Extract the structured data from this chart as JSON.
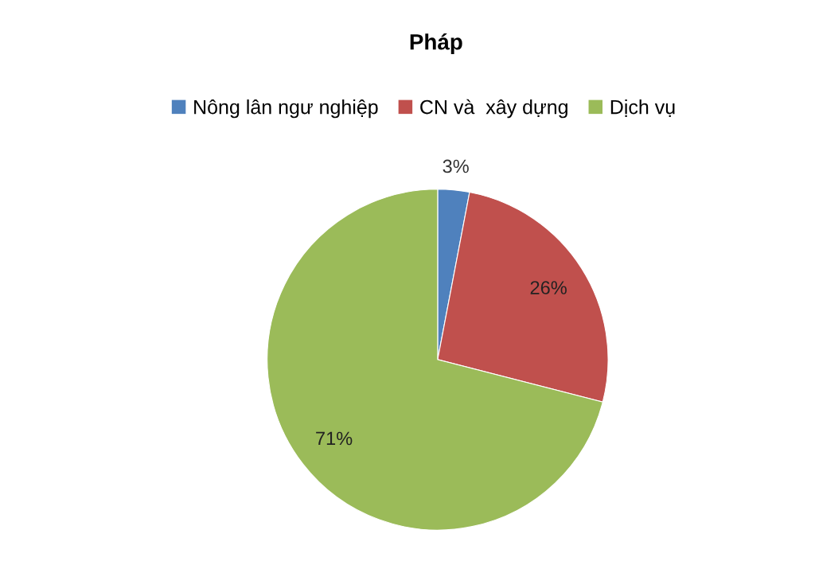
{
  "chart_data": {
    "type": "pie",
    "title": "Pháp",
    "categories": [
      "Nông lân ngư nghiệp",
      "CN và  xây dựng",
      "Dịch vụ"
    ],
    "values": [
      3,
      26,
      71
    ],
    "colors": [
      "#4f81bd",
      "#c0504d",
      "#9bbb59"
    ],
    "value_labels": [
      "3%",
      "26%",
      "71%"
    ],
    "legend": "top"
  }
}
